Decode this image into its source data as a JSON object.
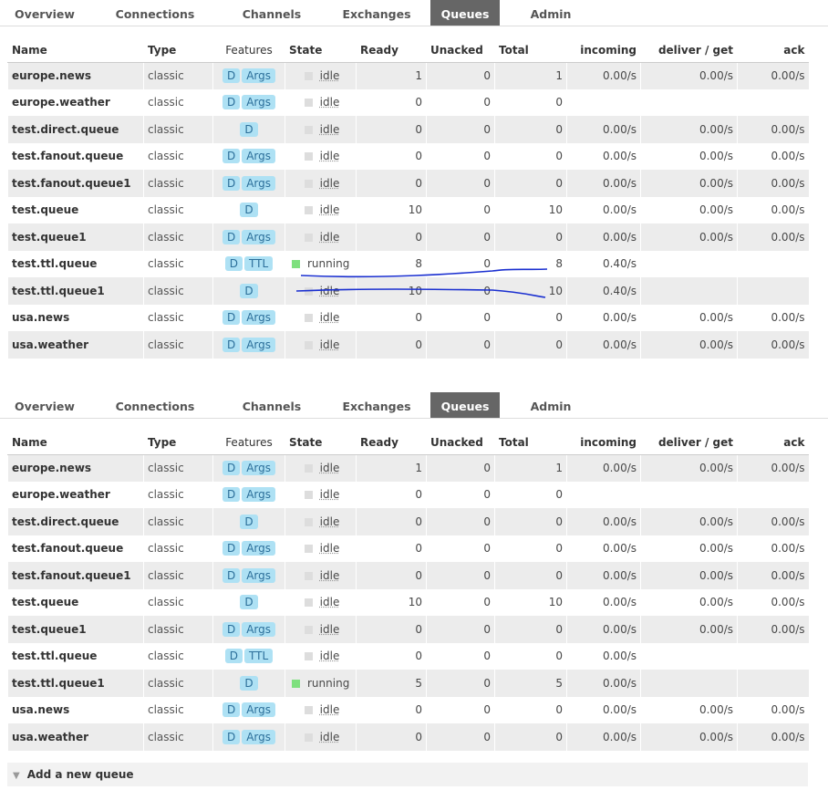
{
  "panels": [
    {
      "tabs": [
        "Overview",
        "Connections",
        "Channels",
        "Exchanges",
        "Queues",
        "Admin"
      ],
      "columns": [
        "Name",
        "Type",
        "Features",
        "State",
        "Ready",
        "Unacked",
        "Total",
        "incoming",
        "deliver / get",
        "ack"
      ],
      "rows": [
        [
          "europe.news",
          "classic",
          [
            "D",
            "Args"
          ],
          "idle",
          1,
          0,
          1,
          "0.00/s",
          "0.00/s",
          "0.00/s"
        ],
        [
          "europe.weather",
          "classic",
          [
            "D",
            "Args"
          ],
          "idle",
          0,
          0,
          0,
          null,
          null,
          null
        ],
        [
          "test.direct.queue",
          "classic",
          [
            "D"
          ],
          "idle",
          0,
          0,
          0,
          "0.00/s",
          "0.00/s",
          "0.00/s"
        ],
        [
          "test.fanout.queue",
          "classic",
          [
            "D",
            "Args"
          ],
          "idle",
          0,
          0,
          0,
          "0.00/s",
          "0.00/s",
          "0.00/s"
        ],
        [
          "test.fanout.queue1",
          "classic",
          [
            "D",
            "Args"
          ],
          "idle",
          0,
          0,
          0,
          "0.00/s",
          "0.00/s",
          "0.00/s"
        ],
        [
          "test.queue",
          "classic",
          [
            "D"
          ],
          "idle",
          10,
          0,
          10,
          "0.00/s",
          "0.00/s",
          "0.00/s"
        ],
        [
          "test.queue1",
          "classic",
          [
            "D",
            "Args"
          ],
          "idle",
          0,
          0,
          0,
          "0.00/s",
          "0.00/s",
          "0.00/s"
        ],
        [
          "test.ttl.queue",
          "classic",
          [
            "D",
            "TTL"
          ],
          "running",
          8,
          0,
          8,
          "0.40/s",
          null,
          null
        ],
        [
          "test.ttl.queue1",
          "classic",
          [
            "D"
          ],
          "idle",
          10,
          0,
          10,
          "0.40/s",
          null,
          null
        ],
        [
          "usa.news",
          "classic",
          [
            "D",
            "Args"
          ],
          "idle",
          0,
          0,
          0,
          "0.00/s",
          "0.00/s",
          "0.00/s"
        ],
        [
          "usa.weather",
          "classic",
          [
            "D",
            "Args"
          ],
          "idle",
          0,
          0,
          0,
          "0.00/s",
          "0.00/s",
          "0.00/s"
        ]
      ]
    },
    {
      "tabs": [
        "Overview",
        "Connections",
        "Channels",
        "Exchanges",
        "Queues",
        "Admin"
      ],
      "columns": [
        "Name",
        "Type",
        "Features",
        "State",
        "Ready",
        "Unacked",
        "Total",
        "incoming",
        "deliver / get",
        "ack"
      ],
      "rows": [
        [
          "europe.news",
          "classic",
          [
            "D",
            "Args"
          ],
          "idle",
          1,
          0,
          1,
          "0.00/s",
          "0.00/s",
          "0.00/s"
        ],
        [
          "europe.weather",
          "classic",
          [
            "D",
            "Args"
          ],
          "idle",
          0,
          0,
          0,
          null,
          null,
          null
        ],
        [
          "test.direct.queue",
          "classic",
          [
            "D"
          ],
          "idle",
          0,
          0,
          0,
          "0.00/s",
          "0.00/s",
          "0.00/s"
        ],
        [
          "test.fanout.queue",
          "classic",
          [
            "D",
            "Args"
          ],
          "idle",
          0,
          0,
          0,
          "0.00/s",
          "0.00/s",
          "0.00/s"
        ],
        [
          "test.fanout.queue1",
          "classic",
          [
            "D",
            "Args"
          ],
          "idle",
          0,
          0,
          0,
          "0.00/s",
          "0.00/s",
          "0.00/s"
        ],
        [
          "test.queue",
          "classic",
          [
            "D"
          ],
          "idle",
          10,
          0,
          10,
          "0.00/s",
          "0.00/s",
          "0.00/s"
        ],
        [
          "test.queue1",
          "classic",
          [
            "D",
            "Args"
          ],
          "idle",
          0,
          0,
          0,
          "0.00/s",
          "0.00/s",
          "0.00/s"
        ],
        [
          "test.ttl.queue",
          "classic",
          [
            "D",
            "TTL"
          ],
          "idle",
          0,
          0,
          0,
          "0.00/s",
          null,
          null
        ],
        [
          "test.ttl.queue1",
          "classic",
          [
            "D"
          ],
          "running",
          5,
          0,
          5,
          "0.00/s",
          null,
          null
        ],
        [
          "usa.news",
          "classic",
          [
            "D",
            "Args"
          ],
          "idle",
          0,
          0,
          0,
          "0.00/s",
          "0.00/s",
          "0.00/s"
        ],
        [
          "usa.weather",
          "classic",
          [
            "D",
            "Args"
          ],
          "idle",
          0,
          0,
          0,
          "0.00/s",
          "0.00/s",
          "0.00/s"
        ]
      ]
    }
  ],
  "footer": "Add a new queue"
}
